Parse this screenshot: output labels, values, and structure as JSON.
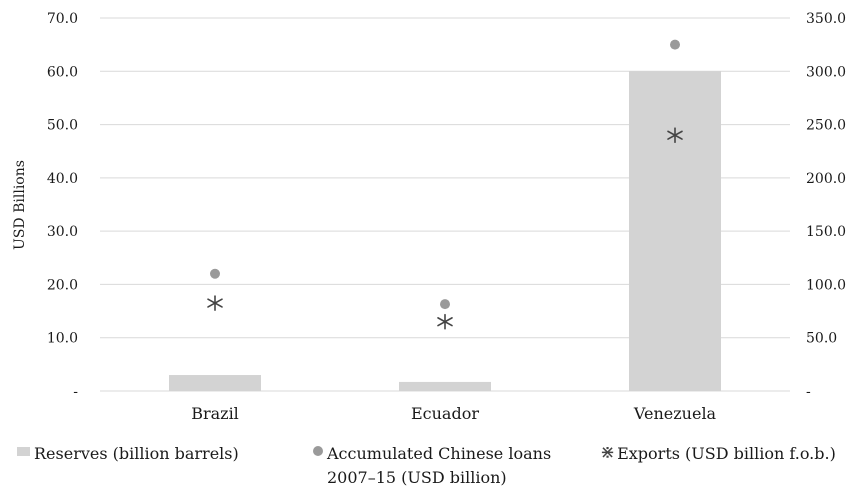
{
  "chart_data": {
    "type": "bar",
    "categories": [
      "Brazil",
      "Ecuador",
      "Venezuela"
    ],
    "y_left": {
      "label": "USD Billions",
      "range": [
        0,
        70
      ],
      "ticks": [
        {
          "value": 0,
          "label": "-"
        },
        {
          "value": 10,
          "label": "10.0"
        },
        {
          "value": 20,
          "label": "20.0"
        },
        {
          "value": 30,
          "label": "30.0"
        },
        {
          "value": 40,
          "label": "40.0"
        },
        {
          "value": 50,
          "label": "50.0"
        },
        {
          "value": 60,
          "label": "60.0"
        },
        {
          "value": 70,
          "label": "70.0"
        }
      ]
    },
    "y_right": {
      "label": "",
      "range": [
        0,
        350
      ],
      "ticks": [
        {
          "value": 0,
          "label": "-"
        },
        {
          "value": 50,
          "label": "50.0"
        },
        {
          "value": 100,
          "label": "100.0"
        },
        {
          "value": 150,
          "label": "150.0"
        },
        {
          "value": 200,
          "label": "200.0"
        },
        {
          "value": 250,
          "label": "250.0"
        },
        {
          "value": 300,
          "label": "300.0"
        },
        {
          "value": 350,
          "label": "350.0"
        }
      ]
    },
    "grid": true,
    "legend_position": "bottom",
    "series": [
      {
        "name": "Reserves  (billion barrels)",
        "kind": "bar",
        "axis": "right",
        "values": [
          15,
          8.5,
          300
        ],
        "color": "#d3d3d3"
      },
      {
        "name": "Accumulated Chinese loans 2007–15 (USD billion)",
        "kind": "dot",
        "axis": "left",
        "values": [
          22,
          16.3,
          65
        ],
        "color": "#9a9a9a"
      },
      {
        "name": "Exports (USD billion f.o.b.)",
        "kind": "star",
        "axis": "left",
        "values": [
          16.5,
          13,
          48
        ],
        "color": "#444444"
      }
    ],
    "legend": {
      "reserves": "Reserves  (billion barrels)",
      "loans_line1": "Accumulated Chinese loans",
      "loans_line2": "2007–15 (USD billion)",
      "exports": "Exports (USD billion f.o.b.)"
    }
  }
}
